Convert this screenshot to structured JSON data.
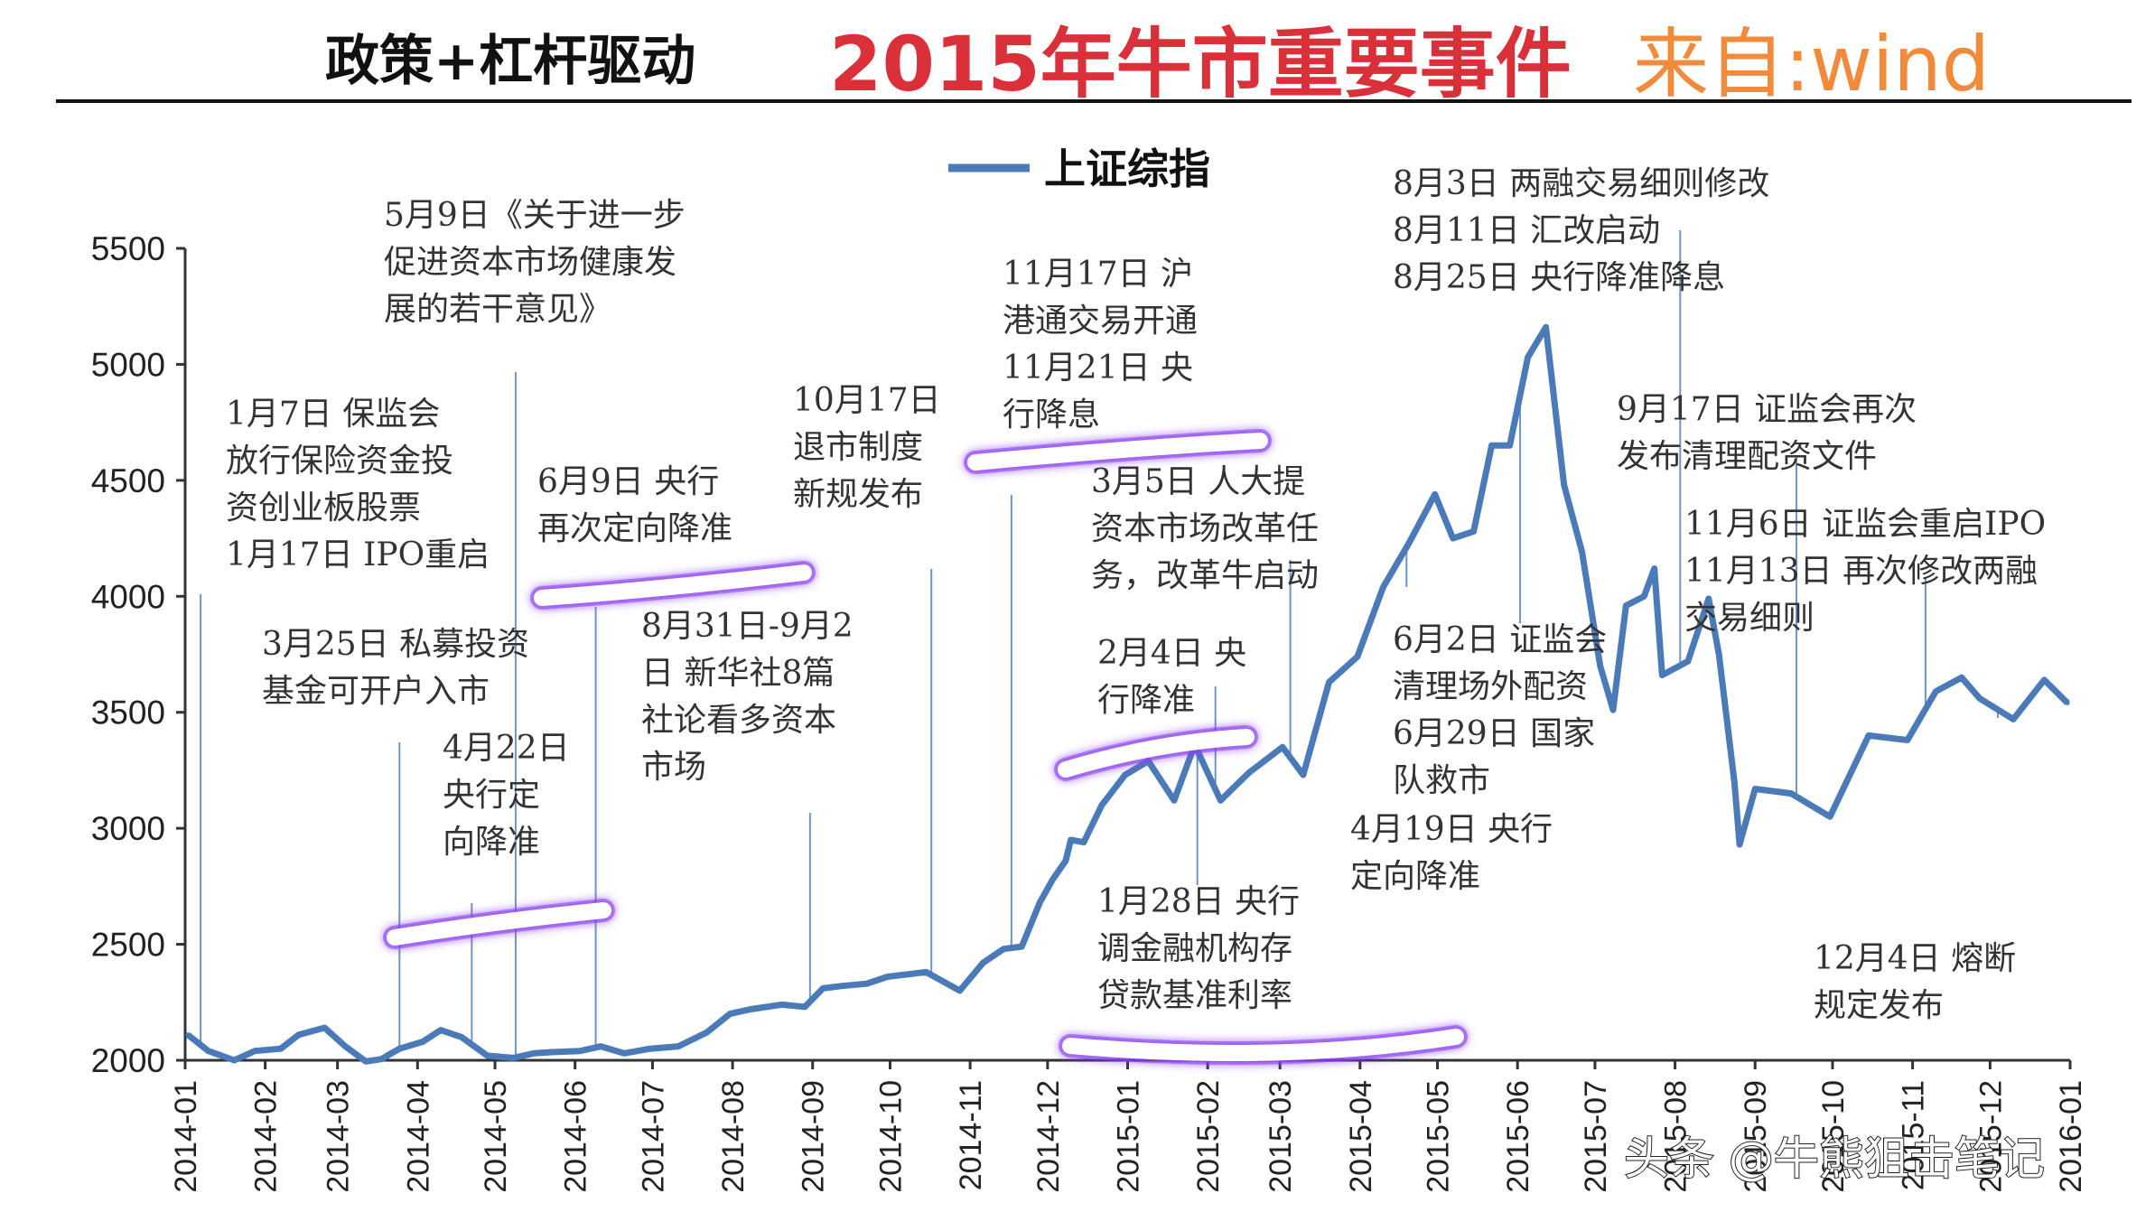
{
  "header": {
    "left_title": "政策+杠杆驱动",
    "main_title": "2015年牛市重要事件",
    "source": "来自:wind"
  },
  "watermark": "头条 @牛熊狙击笔记",
  "colors": {
    "series_line": "#4a7ab8",
    "event_line": "#6f95c4",
    "highlight": "#8a3ff0",
    "title_red": "#d9303a",
    "source_orange": "#f28a3c"
  },
  "chart_data": {
    "type": "line",
    "title": "",
    "xlabel": "",
    "ylabel": "",
    "legend": {
      "position": "top-center",
      "label": "上证综指"
    },
    "ylim": [
      2000,
      5500
    ],
    "yticks": [
      "2000",
      "2500",
      "3000",
      "3500",
      "4000",
      "4500",
      "5000",
      "5500"
    ],
    "xlim": [
      "2014-01-01",
      "2016-01-01"
    ],
    "xticks": [
      "2014-01",
      "2014-02",
      "2014-03",
      "2014-04",
      "2014-05",
      "2014-06",
      "2014-07",
      "2014-08",
      "2014-09",
      "2014-10",
      "2014-11",
      "2014-12",
      "2015-01",
      "2015-02",
      "2015-03",
      "2015-04",
      "2015-05",
      "2015-06",
      "2015-07",
      "2015-08",
      "2015-09",
      "2015-10",
      "2015-11",
      "2015-12",
      "2016-01"
    ],
    "series": [
      {
        "name": "上证综指",
        "x": [
          "2014-01-02",
          "2014-01-10",
          "2014-01-20",
          "2014-01-28",
          "2014-02-07",
          "2014-02-14",
          "2014-02-24",
          "2014-03-04",
          "2014-03-12",
          "2014-03-18",
          "2014-03-25",
          "2014-04-03",
          "2014-04-10",
          "2014-04-18",
          "2014-04-28",
          "2014-05-08",
          "2014-05-16",
          "2014-05-23",
          "2014-06-03",
          "2014-06-11",
          "2014-06-20",
          "2014-06-30",
          "2014-07-11",
          "2014-07-22",
          "2014-07-31",
          "2014-08-08",
          "2014-08-20",
          "2014-08-29",
          "2014-09-05",
          "2014-09-12",
          "2014-09-22",
          "2014-09-30",
          "2014-10-15",
          "2014-10-28",
          "2014-11-06",
          "2014-11-14",
          "2014-11-21",
          "2014-11-28",
          "2014-12-03",
          "2014-12-08",
          "2014-12-10",
          "2014-12-15",
          "2014-12-22",
          "2014-12-31",
          "2015-01-09",
          "2015-01-19",
          "2015-01-27",
          "2015-02-06",
          "2015-02-17",
          "2015-03-02",
          "2015-03-10",
          "2015-03-20",
          "2015-03-31",
          "2015-04-10",
          "2015-04-20",
          "2015-04-30",
          "2015-05-07",
          "2015-05-15",
          "2015-05-22",
          "2015-05-29",
          "2015-06-05",
          "2015-06-12",
          "2015-06-19",
          "2015-06-26",
          "2015-07-03",
          "2015-07-08",
          "2015-07-13",
          "2015-07-20",
          "2015-07-24",
          "2015-07-27",
          "2015-08-06",
          "2015-08-14",
          "2015-08-18",
          "2015-08-24",
          "2015-08-26",
          "2015-09-01",
          "2015-09-15",
          "2015-09-30",
          "2015-10-15",
          "2015-10-30",
          "2015-11-10",
          "2015-11-20",
          "2015-11-27",
          "2015-12-10",
          "2015-12-22",
          "2015-12-31"
        ],
        "values": [
          2110,
          2040,
          2000,
          2040,
          2050,
          2110,
          2140,
          2060,
          1995,
          2005,
          2050,
          2080,
          2130,
          2100,
          2020,
          2010,
          2030,
          2035,
          2040,
          2060,
          2030,
          2050,
          2060,
          2120,
          2200,
          2220,
          2240,
          2230,
          2310,
          2320,
          2330,
          2360,
          2380,
          2300,
          2420,
          2480,
          2490,
          2680,
          2780,
          2860,
          2950,
          2940,
          3100,
          3230,
          3290,
          3120,
          3360,
          3120,
          3240,
          3350,
          3230,
          3630,
          3740,
          4040,
          4230,
          4440,
          4250,
          4280,
          4650,
          4650,
          5030,
          5160,
          4480,
          4190,
          3700,
          3510,
          3960,
          4000,
          4120,
          3660,
          3720,
          3990,
          3750,
          3200,
          2930,
          3170,
          3150,
          3050,
          3400,
          3380,
          3590,
          3650,
          3560,
          3470,
          3640,
          3540
        ]
      }
    ],
    "annotations": [
      {
        "date": "2014-01-07",
        "text": [
          "1月7日 保监会",
          "放行保险资金投",
          "资创业板股票",
          "1月17日 IPO重启"
        ]
      },
      {
        "date": "2014-03-25",
        "text": [
          "3月25日 私募投资",
          "基金可开户入市"
        ]
      },
      {
        "date": "2014-04-22",
        "text": [
          "4月22日",
          "央行定",
          "向降准"
        ]
      },
      {
        "date": "2014-05-09",
        "text": [
          "5月9日《关于进一步",
          "促进资本市场健康发",
          "展的若干意见》"
        ]
      },
      {
        "date": "2014-06-09",
        "text": [
          "6月9日 央行",
          "再次定向降准"
        ]
      },
      {
        "date": "2014-08-31",
        "text": [
          "8月31日-9月2",
          "日 新华社8篇",
          "社论看多资本",
          "市场"
        ]
      },
      {
        "date": "2014-10-17",
        "text": [
          "10月17日",
          "退市制度",
          "新规发布"
        ]
      },
      {
        "date": "2014-11-17",
        "text": [
          "11月17日 沪",
          "港通交易开通",
          "11月21日 央",
          "行降息"
        ]
      },
      {
        "date": "2015-01-28",
        "text": [
          "1月28日 央行",
          "调金融机构存",
          "贷款基准利率"
        ]
      },
      {
        "date": "2015-02-04",
        "text": [
          "2月4日 央",
          "行降准"
        ]
      },
      {
        "date": "2015-03-05",
        "text": [
          "3月5日 人大提",
          "资本市场改革任",
          "务，改革牛启动"
        ]
      },
      {
        "date": "2015-04-19",
        "text": [
          "4月19日 央行",
          "定向降准"
        ]
      },
      {
        "date": "2015-06-02",
        "text": [
          "6月2日 证监会",
          "清理场外配资",
          "6月29日 国家",
          "队救市"
        ]
      },
      {
        "date": "2015-08-03",
        "text": [
          "8月3日 两融交易细则修改",
          "8月11日 汇改启动",
          "8月25日 央行降准降息"
        ]
      },
      {
        "date": "2015-09-17",
        "text": [
          "9月17日 证监会再次",
          "发布清理配资文件"
        ]
      },
      {
        "date": "2015-11-06",
        "text": [
          "11月6日 证监会重启IPO",
          "11月13日 再次修改两融",
          "交易细则"
        ]
      },
      {
        "date": "2015-12-04",
        "text": [
          "12月4日 熔断",
          "规定发布"
        ]
      }
    ]
  }
}
